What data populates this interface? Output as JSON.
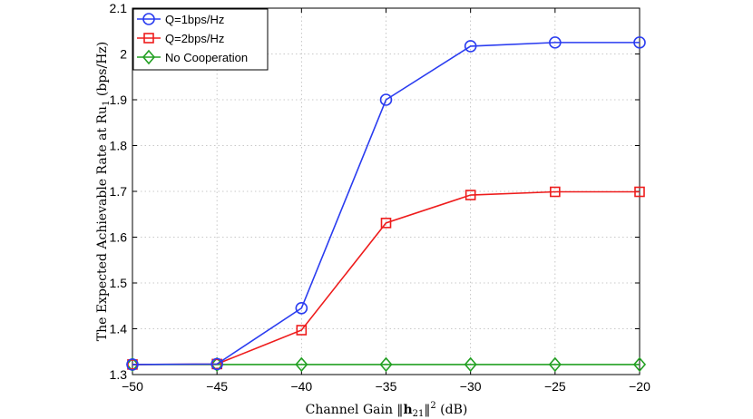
{
  "chart_data": {
    "type": "line",
    "xlabel": "Channel Gain ‖h21‖² (dB)",
    "ylabel": "The Expected Achievable Rate at Ru1 (bps/Hz)",
    "x": [
      -50,
      -45,
      -40,
      -35,
      -30,
      -25,
      -20
    ],
    "xlim": [
      -50,
      -20
    ],
    "ylim": [
      1.3,
      2.1
    ],
    "x_ticks": [
      -50,
      -45,
      -40,
      -35,
      -30,
      -25,
      -20
    ],
    "y_ticks": [
      1.3,
      1.4,
      1.5,
      1.6,
      1.7,
      1.8,
      1.9,
      2,
      2.1
    ],
    "x_tick_labels": [
      "−50",
      "−45",
      "−40",
      "−35",
      "−30",
      "−25",
      "−20"
    ],
    "y_tick_labels": [
      "1.3",
      "1.4",
      "1.5",
      "1.6",
      "1.7",
      "1.8",
      "1.9",
      "2",
      "2.1"
    ],
    "grid": true,
    "legend_position": "top-left",
    "series": [
      {
        "name": "Q=1bps/Hz",
        "color": "#2a3cf0",
        "marker": "circle",
        "values": [
          1.322,
          1.323,
          1.445,
          1.9,
          2.017,
          2.025,
          2.025
        ]
      },
      {
        "name": "Q=2bps/Hz",
        "color": "#ee1c1c",
        "marker": "square",
        "values": [
          1.322,
          1.323,
          1.397,
          1.631,
          1.692,
          1.699,
          1.699
        ]
      },
      {
        "name": "No Cooperation",
        "color": "#22a022",
        "marker": "diamond",
        "values": [
          1.322,
          1.322,
          1.322,
          1.322,
          1.322,
          1.322,
          1.322
        ]
      }
    ]
  }
}
